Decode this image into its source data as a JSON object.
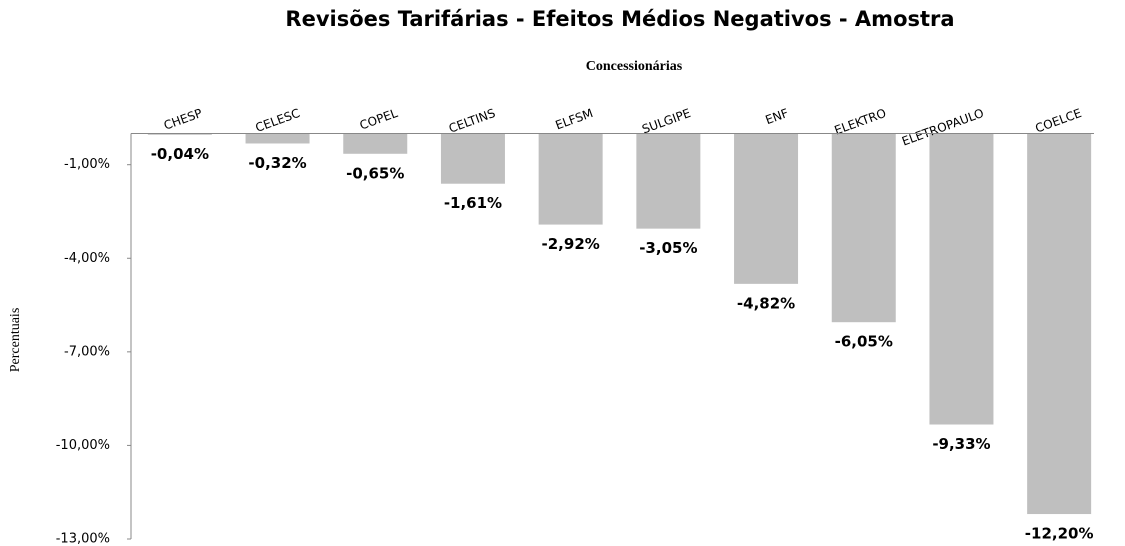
{
  "chart_data": {
    "type": "bar",
    "title": "Revisões Tarifárias  - Efeitos  Médios Negativos - Amostra",
    "x_label": "Concessionárias",
    "y_label": "Percentuais",
    "categories": [
      "CHESP",
      "CELESC",
      "COPEL",
      "CELTINS",
      "ELFSM",
      "SULGIPE",
      "ENF",
      "ELEKTRO",
      "ELETROPAULO",
      "COELCE"
    ],
    "values": [
      -0.04,
      -0.32,
      -0.65,
      -1.61,
      -2.92,
      -3.05,
      -4.82,
      -6.05,
      -9.33,
      -12.2
    ],
    "value_labels": [
      "-0,04%",
      "-0,32%",
      "-0,65%",
      "-1,61%",
      "-2,92%",
      "-3,05%",
      "-4,82%",
      "-6,05%",
      "-9,33%",
      "-12,20%"
    ],
    "color": "#bfbfbf",
    "ylim": [
      -13,
      0
    ],
    "yticks": [
      {
        "value": -1,
        "label": "-1,00%"
      },
      {
        "value": -4,
        "label": "-4,00%"
      },
      {
        "value": -7,
        "label": "-7,00%"
      },
      {
        "value": -10,
        "label": "-10,00%"
      },
      {
        "value": -13,
        "label": "-13,00%"
      }
    ],
    "grid": false
  }
}
